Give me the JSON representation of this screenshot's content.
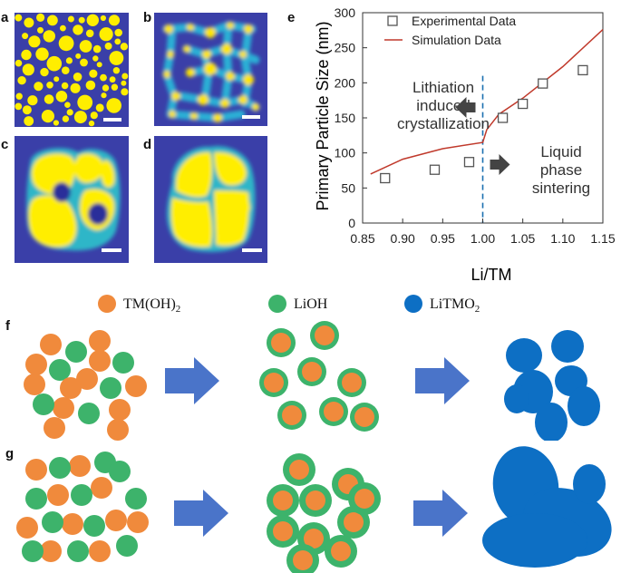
{
  "panels": {
    "a": "a",
    "b": "b",
    "c": "c",
    "d": "d",
    "e": "e",
    "f": "f",
    "g": "g"
  },
  "colors": {
    "sim_background": "#3a3fa8",
    "sim_grain": "#ffee00",
    "sim_boundary": "#2fb6c8",
    "tm_oh2": "#f08a3c",
    "lioh": "#3db36b",
    "litmo2": "#0d6fc4",
    "arrow": "#4a74c9",
    "simulation_line": "#c0392b",
    "divider": "#1a6fb0"
  },
  "legend": {
    "tm_oh2_label": "TM(OH)",
    "tm_oh2_sub": "2",
    "lioh_label": "LiOH",
    "litmo2_label": "LiTMO",
    "litmo2_sub": "2"
  },
  "chart_data": {
    "type": "scatter",
    "xlabel": "Li/TM",
    "ylabel": "Primary Particle Size (nm)",
    "xlim": [
      0.85,
      1.15
    ],
    "ylim": [
      0,
      300
    ],
    "x_ticks": [
      "0.85",
      "0.90",
      "0.95",
      "1.00",
      "1.05",
      "1.10",
      "1.15"
    ],
    "y_ticks": [
      "0",
      "50",
      "100",
      "150",
      "200",
      "250",
      "300"
    ],
    "grid": false,
    "legend_position": "top-left",
    "series": [
      {
        "name": "Experimental Data",
        "kind": "markers",
        "x": [
          0.878,
          0.94,
          0.983,
          1.025,
          1.05,
          1.075,
          1.125
        ],
        "y": [
          64,
          76,
          87,
          150,
          170,
          199,
          218
        ]
      },
      {
        "name": "Simulation Data",
        "kind": "line",
        "x": [
          0.86,
          0.9,
          0.95,
          1.0,
          1.005,
          1.02,
          1.05,
          1.1,
          1.15
        ],
        "y": [
          70,
          91,
          106,
          115,
          133,
          155,
          178,
          223,
          276
        ]
      }
    ],
    "divider_x": 1.0,
    "annotations": {
      "left": [
        "Lithiation",
        "induced",
        "crystallization"
      ],
      "right": [
        "Liquid",
        "phase",
        "sintering"
      ]
    }
  }
}
